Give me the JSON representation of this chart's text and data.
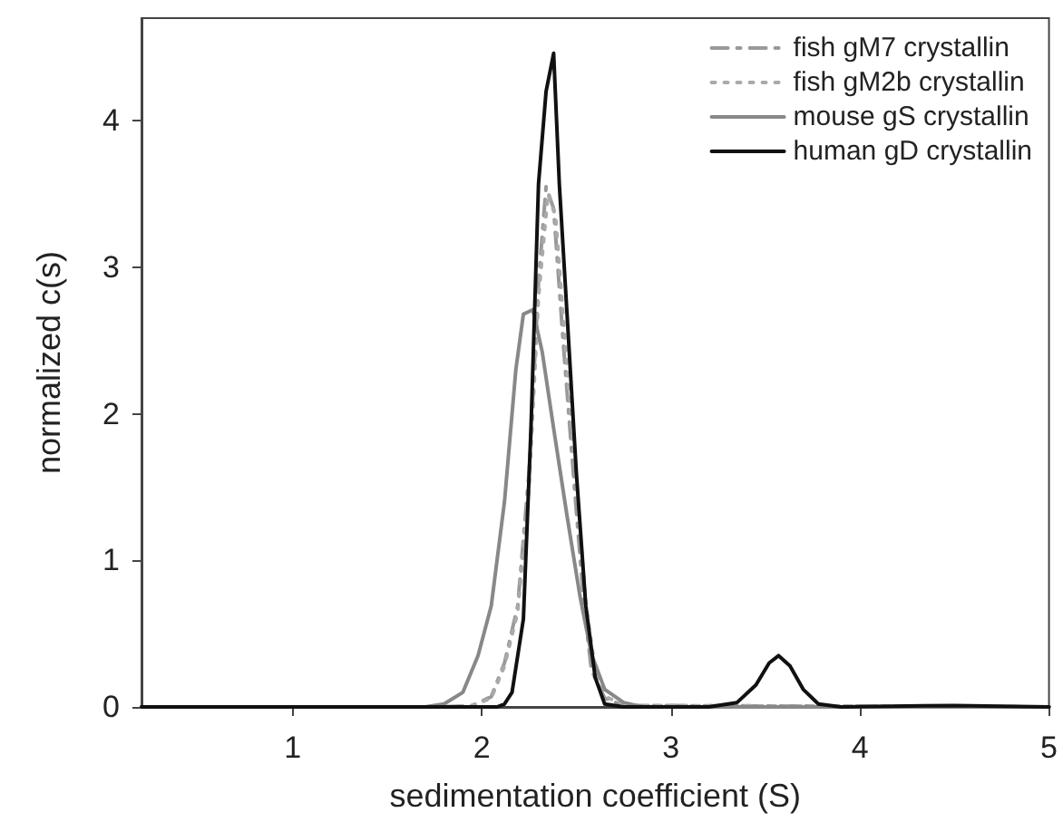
{
  "chart_data": {
    "type": "line",
    "xlabel": "sedimentation coefficient (S)",
    "ylabel": "normalized c(s)",
    "xlim": [
      0.2,
      5
    ],
    "xticks": [
      1,
      2,
      3,
      4,
      5
    ],
    "ylim": [
      0,
      4.7
    ],
    "yticks": [
      0,
      1,
      2,
      3,
      4
    ],
    "grid": false,
    "legend": "top right",
    "marker": "none",
    "series": [
      {
        "name": "fish gM7 crystallin",
        "color": "#999999",
        "line_style": "dashdot",
        "x": [
          0.2,
          1.8,
          1.95,
          2.05,
          2.12,
          2.19,
          2.25,
          2.3,
          2.34,
          2.38,
          2.43,
          2.49,
          2.54,
          2.58,
          2.65,
          2.75,
          5
        ],
        "values": [
          0,
          0,
          0.01,
          0.07,
          0.3,
          0.69,
          1.6,
          2.9,
          3.55,
          3.4,
          2.5,
          1.5,
          0.7,
          0.25,
          0.06,
          0.01,
          0
        ]
      },
      {
        "name": "fish gM2b crystallin",
        "color": "#aaaaaa",
        "line_style": "dotted",
        "x": [
          0.2,
          1.8,
          1.95,
          2.05,
          2.12,
          2.19,
          2.25,
          2.3,
          2.35,
          2.39,
          2.44,
          2.5,
          2.55,
          2.6,
          2.67,
          2.78,
          5
        ],
        "values": [
          0,
          0,
          0.01,
          0.06,
          0.28,
          0.65,
          1.5,
          2.8,
          3.5,
          3.35,
          2.5,
          1.5,
          0.7,
          0.25,
          0.06,
          0.01,
          0
        ]
      },
      {
        "name": "mouse gS crystallin",
        "color": "#888888",
        "line_style": "solid",
        "x": [
          0.2,
          1.7,
          1.8,
          1.9,
          1.98,
          2.05,
          2.12,
          2.18,
          2.22,
          2.27,
          2.32,
          2.38,
          2.45,
          2.52,
          2.58,
          2.65,
          2.75,
          2.85,
          5
        ],
        "values": [
          0,
          0,
          0.02,
          0.1,
          0.35,
          0.69,
          1.4,
          2.3,
          2.68,
          2.71,
          2.42,
          1.9,
          1.31,
          0.75,
          0.36,
          0.12,
          0.03,
          0,
          0
        ]
      },
      {
        "name": "human gD crystallin",
        "color": "#111111",
        "line_style": "solid",
        "x": [
          0.2,
          2.08,
          2.12,
          2.16,
          2.22,
          2.26,
          2.3,
          2.34,
          2.38,
          2.41,
          2.45,
          2.5,
          2.55,
          2.6,
          2.65,
          2.75,
          3.2,
          3.35,
          3.45,
          3.52,
          3.57,
          3.63,
          3.7,
          3.78,
          3.9,
          4.5,
          5
        ],
        "values": [
          0,
          0,
          0.02,
          0.1,
          0.6,
          1.9,
          3.57,
          4.2,
          4.46,
          3.57,
          2.7,
          1.6,
          0.69,
          0.2,
          0.02,
          0,
          0,
          0.03,
          0.15,
          0.3,
          0.35,
          0.28,
          0.12,
          0.02,
          0,
          0.01,
          0
        ]
      }
    ]
  }
}
